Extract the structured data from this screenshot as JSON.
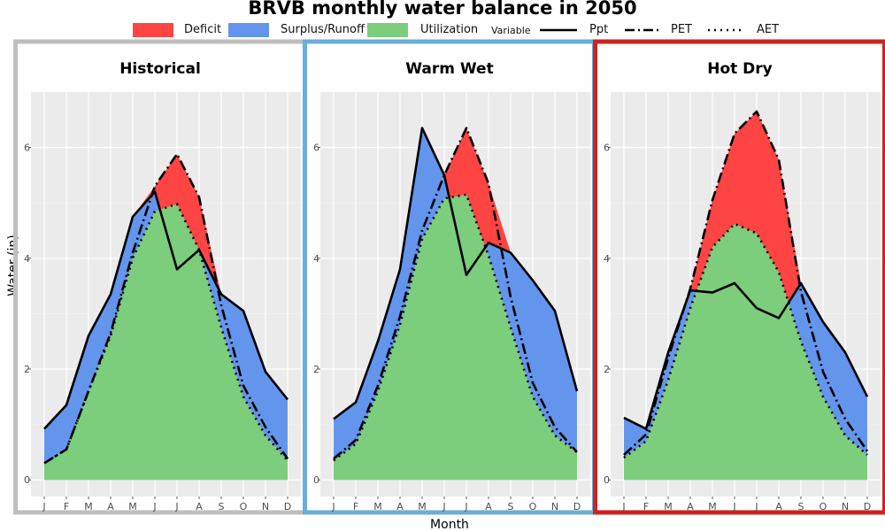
{
  "title": "BRVB monthly water balance in 2050",
  "legend": {
    "fill_items": [
      {
        "label": "Deficit",
        "color": "#ff4444"
      },
      {
        "label": "Surplus/Runoff",
        "color": "#6495ed"
      },
      {
        "label": "Utilization",
        "color": "#7ccd7c"
      }
    ],
    "variable_title": "Variable",
    "line_items": [
      {
        "label": "Ppt",
        "style": "solid"
      },
      {
        "label": "PET",
        "style": "longdash-dot"
      },
      {
        "label": "AET",
        "style": "dotted"
      }
    ]
  },
  "chart_data": {
    "type": "area",
    "xlabel": "Month",
    "ylabel": "Water (in)",
    "categories": [
      "J",
      "F",
      "M",
      "A",
      "M",
      "J",
      "J",
      "A",
      "S",
      "O",
      "N",
      "D"
    ],
    "y_ticks": [
      0,
      2,
      4,
      6
    ],
    "ylim": [
      -0.3,
      7.0
    ],
    "grid": true,
    "fill_colors": {
      "deficit": "#ff4444",
      "surplus": "#6495ed",
      "utilization": "#7ccd7c"
    },
    "panels": [
      {
        "title": "Historical",
        "border_color": "#bebebe",
        "series": [
          {
            "name": "Ppt",
            "values": [
              0.92,
              1.35,
              2.6,
              3.35,
              4.75,
              5.2,
              3.8,
              4.15,
              3.35,
              3.05,
              1.95,
              1.45
            ]
          },
          {
            "name": "PET",
            "values": [
              0.3,
              0.55,
              1.6,
              2.65,
              4.1,
              5.3,
              5.88,
              5.1,
              3.15,
              1.7,
              0.95,
              0.38
            ]
          },
          {
            "name": "AET",
            "values": [
              0.3,
              0.55,
              1.6,
              2.6,
              4.0,
              4.85,
              4.98,
              4.15,
              2.75,
              1.5,
              0.8,
              0.35
            ]
          }
        ]
      },
      {
        "title": "Warm Wet",
        "border_color": "#6baed6",
        "series": [
          {
            "name": "Ppt",
            "values": [
              1.1,
              1.4,
              2.5,
              3.8,
              6.35,
              5.5,
              3.7,
              4.28,
              4.1,
              3.6,
              3.05,
              1.6
            ]
          },
          {
            "name": "PET",
            "values": [
              0.38,
              0.72,
              1.7,
              2.95,
              4.5,
              5.5,
              6.35,
              5.35,
              3.3,
              1.75,
              0.95,
              0.5
            ]
          },
          {
            "name": "AET",
            "values": [
              0.35,
              0.65,
              1.6,
              2.8,
              4.35,
              5.08,
              5.15,
              4.05,
              2.75,
              1.5,
              0.8,
              0.5
            ]
          }
        ]
      },
      {
        "title": "Hot Dry",
        "border_color": "#cc2222",
        "series": [
          {
            "name": "Ppt",
            "values": [
              1.12,
              0.92,
              2.3,
              3.42,
              3.38,
              3.55,
              3.1,
              2.92,
              3.55,
              2.85,
              2.3,
              1.5
            ]
          },
          {
            "name": "PET",
            "values": [
              0.45,
              0.82,
              2.2,
              3.45,
              5.05,
              6.25,
              6.65,
              5.78,
              3.4,
              1.95,
              1.1,
              0.52
            ]
          },
          {
            "name": "AET",
            "values": [
              0.4,
              0.7,
              1.8,
              3.1,
              4.2,
              4.62,
              4.45,
              3.75,
              2.5,
              1.5,
              0.8,
              0.45
            ]
          }
        ]
      }
    ]
  }
}
